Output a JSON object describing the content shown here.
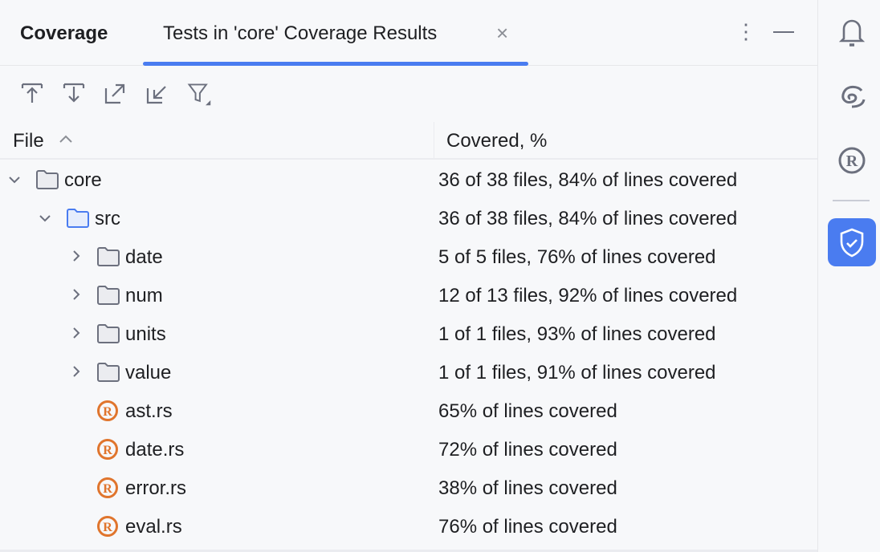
{
  "panel": {
    "title": "Coverage",
    "tab_label": "Tests in 'core' Coverage Results",
    "close": "×",
    "more": "⋮"
  },
  "toolbar": [
    "import-icon",
    "export-icon",
    "expand-icon",
    "collapse-icon",
    "filter-icon"
  ],
  "columns": {
    "file": "File",
    "covered": "Covered, %"
  },
  "rows": [
    {
      "name": "core",
      "level": 0,
      "type": "folder",
      "expanded": true,
      "covered": "36 of 38 files, 84% of lines covered"
    },
    {
      "name": "src",
      "level": 1,
      "type": "source-folder",
      "expanded": true,
      "covered": "36 of 38 files, 84% of lines covered"
    },
    {
      "name": "date",
      "level": 2,
      "type": "folder",
      "expanded": false,
      "covered": "5 of 5 files, 76% of lines covered"
    },
    {
      "name": "num",
      "level": 2,
      "type": "folder",
      "expanded": false,
      "covered": "12 of 13 files, 92% of lines covered"
    },
    {
      "name": "units",
      "level": 2,
      "type": "folder",
      "expanded": false,
      "covered": "1 of 1 files, 93% of lines covered"
    },
    {
      "name": "value",
      "level": 2,
      "type": "folder",
      "expanded": false,
      "covered": "1 of 1 files, 91% of lines covered"
    },
    {
      "name": "ast.rs",
      "level": 2,
      "type": "rust",
      "covered": "65% of lines covered"
    },
    {
      "name": "date.rs",
      "level": 2,
      "type": "rust",
      "covered": "72% of lines covered"
    },
    {
      "name": "error.rs",
      "level": 2,
      "type": "rust",
      "covered": "38% of lines covered"
    },
    {
      "name": "eval.rs",
      "level": 2,
      "type": "rust",
      "covered": "76% of lines covered"
    }
  ],
  "sidebar": [
    "bell-icon",
    "spiral-icon",
    "rust-icon",
    "coverage-shield-icon"
  ],
  "colors": {
    "accent": "#4a7cf0",
    "rust": "#e0752d",
    "icon": "#6c707e"
  }
}
